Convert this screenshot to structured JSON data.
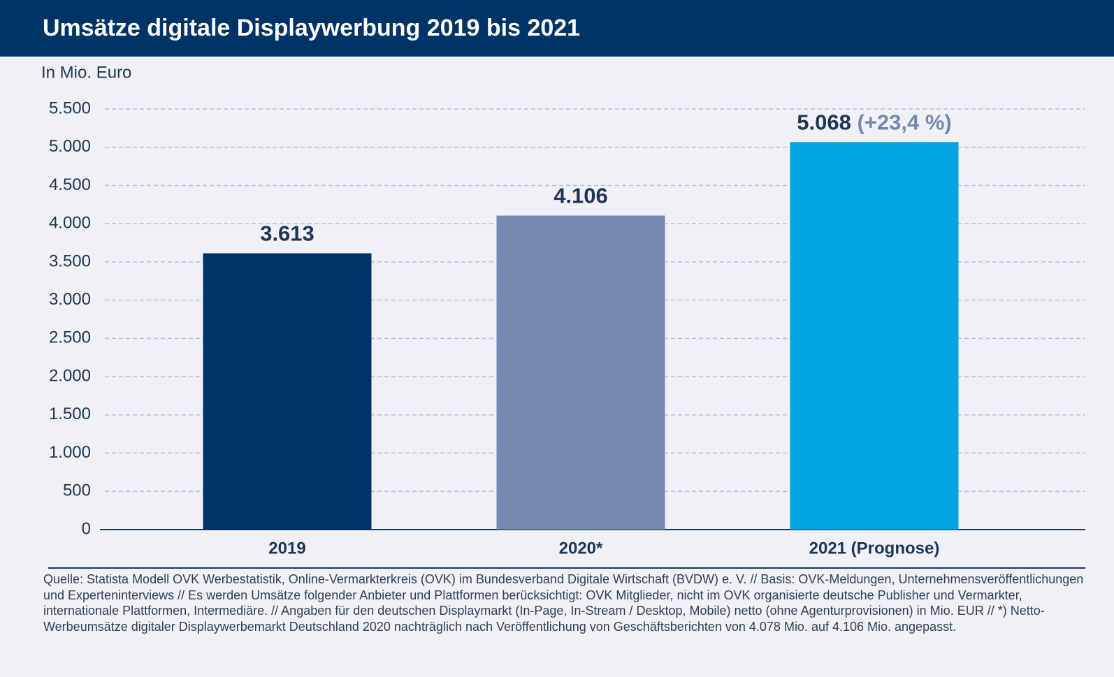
{
  "chart_data": {
    "type": "bar",
    "title": "Umsätze digitale Displaywerbung 2019 bis 2021",
    "y_axis_label": "In Mio. Euro",
    "categories": [
      "2019",
      "2020*",
      "2021 (Prognose)"
    ],
    "values": [
      3613,
      4106,
      5068
    ],
    "value_labels": [
      "3.613",
      "4.106",
      "5.068"
    ],
    "colors": [
      "#003466",
      "#7488b0",
      "#00a5e2"
    ],
    "annotations": [
      {
        "category": "2021 (Prognose)",
        "text": "(+23,4 %)"
      }
    ],
    "ylim": [
      0,
      5500
    ],
    "yticks": [
      0,
      500,
      {
        "value": 1000,
        "label": "1.000"
      },
      {
        "value": 1500,
        "label": "1.500"
      },
      {
        "value": 2000,
        "label": "2.000"
      },
      {
        "value": 2500,
        "label": "2.500"
      },
      {
        "value": 3000,
        "label": "3.000"
      },
      {
        "value": 3500,
        "label": "3.500"
      },
      {
        "value": 4000,
        "label": "4.000"
      },
      {
        "value": 4500,
        "label": "4.500"
      },
      {
        "value": 5000,
        "label": "5.000"
      },
      {
        "value": 5500,
        "label": "5.500"
      }
    ],
    "grid": true,
    "source": "Quelle: Statista Modell OVK Werbestatistik, Online-Vermarkterkreis (OVK) im Bundesverband Digitale Wirtschaft (BVDW) e. V. // Basis: OVK-Meldungen, Unternehmensveröffentlichungen und Experteninterviews // Es werden Umsätze folgender Anbieter und Plattformen berücksichtigt: OVK Mitglieder, nicht im OVK organisierte deutsche Publisher und Vermarkter, internationale Plattformen, Intermediäre. // Angaben für den deutschen Displaymarkt (In-Page, In-Stream / Desktop, Mobile) netto (ohne Agenturprovisionen) in Mio. EUR // *) Netto-Werbeumsätze digitaler Displaywerbemarkt Deutschland 2020 nachträglich nach Veröffentlichung von Geschäftsberichten von 4.078 Mio. auf 4.106 Mio. angepasst."
  }
}
